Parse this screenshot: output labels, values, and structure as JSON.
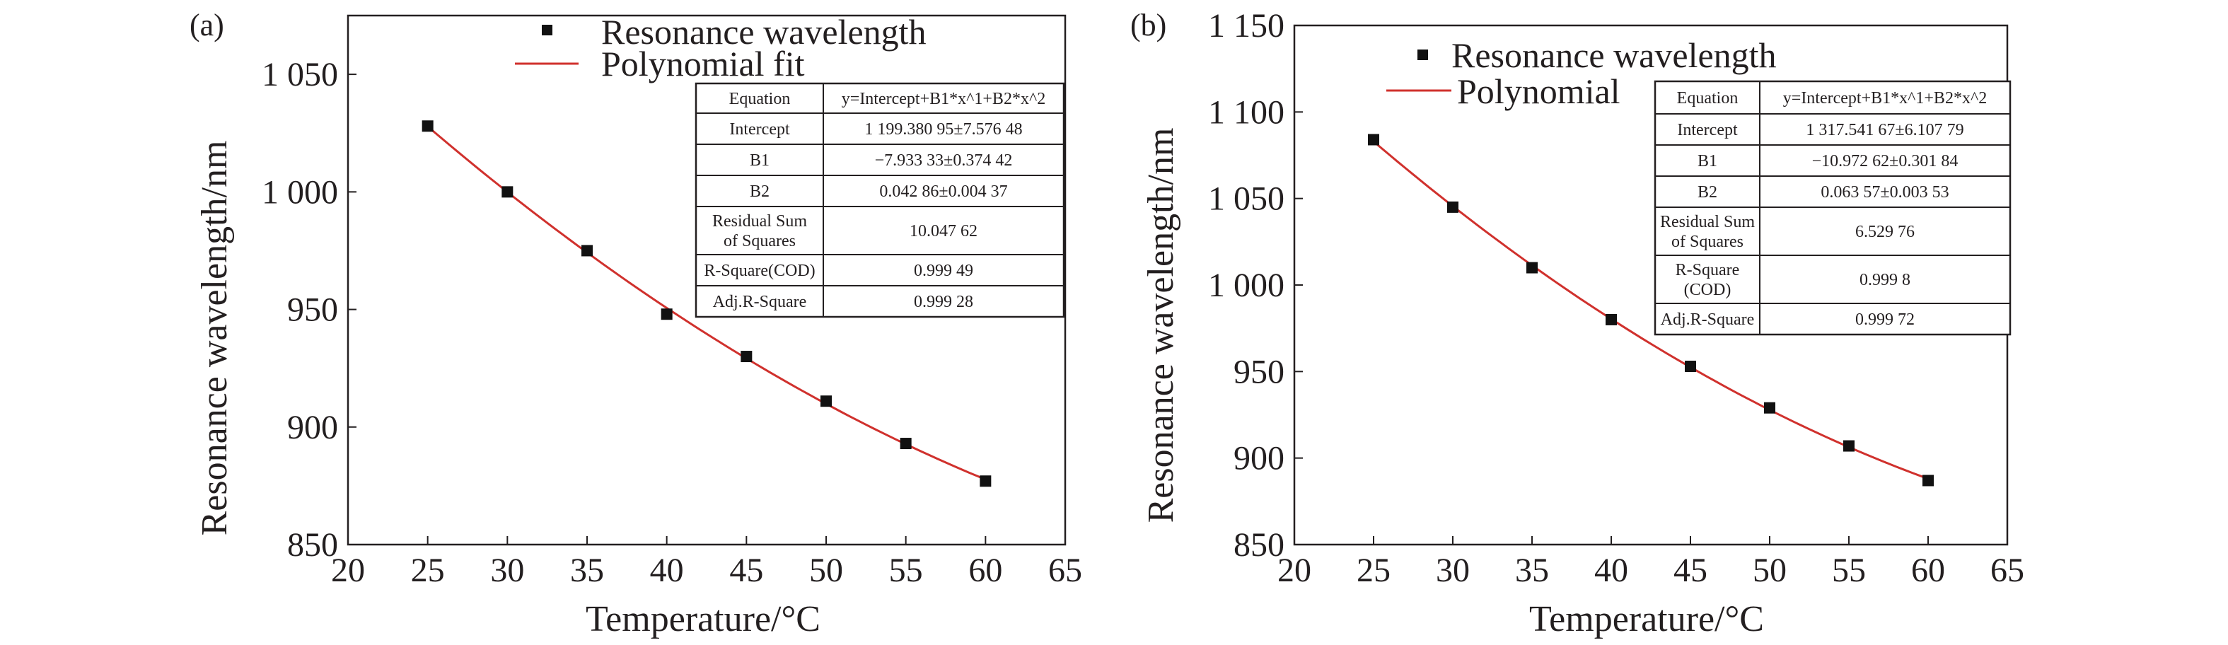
{
  "figure": {
    "panels": [
      {
        "label": "(a)",
        "legend": [
          "Resonance wavelength",
          "Polynomial fit"
        ],
        "table": [
          [
            "Equation",
            "y=Intercept+B1*x^1+B2*x^2"
          ],
          [
            "Intercept",
            "1 199.380 95±7.576 48"
          ],
          [
            "B1",
            "−7.933 33±0.374 42"
          ],
          [
            "B2",
            "0.042 86±0.004 37"
          ],
          [
            "Residual Sum\nof Squares",
            "10.047 62"
          ],
          [
            "R-Square(COD)",
            "0.999 49"
          ],
          [
            "Adj.R-Square",
            "0.999 28"
          ]
        ]
      },
      {
        "label": "(b)",
        "legend": [
          "Resonance wavelength",
          "Polynomial"
        ],
        "table": [
          [
            "Equation",
            "y=Intercept+B1*x^1+B2*x^2"
          ],
          [
            "Intercept",
            "1 317.541 67±6.107 79"
          ],
          [
            "B1",
            "−10.972 62±0.301 84"
          ],
          [
            "B2",
            "0.063 57±0.003 53"
          ],
          [
            "Residual Sum\nof Squares",
            "6.529 76"
          ],
          [
            "R-Square\n(COD)",
            "0.999 8"
          ],
          [
            "Adj.R-Square",
            "0.999 72"
          ]
        ]
      }
    ]
  },
  "colors": {
    "fit_line": "#d0312d",
    "markers": "#111111",
    "axis": "#231f20"
  },
  "chart_data": [
    {
      "type": "scatter",
      "title": "",
      "xlabel": "Temperature/°C",
      "ylabel": "Resonance wavelength/nm",
      "xlim": [
        20,
        65
      ],
      "ylim": [
        850,
        1075
      ],
      "xticks": [
        20,
        25,
        30,
        35,
        40,
        45,
        50,
        55,
        60,
        65
      ],
      "xtick_labels": [
        "20",
        "25",
        "30",
        "35",
        "40",
        "45",
        "50",
        "55",
        "60",
        "65"
      ],
      "yticks": [
        850,
        900,
        950,
        1000,
        1050
      ],
      "ytick_labels": [
        "850",
        "900",
        "950",
        "1 000",
        "1 050"
      ],
      "series": [
        {
          "name": "Resonance wavelength",
          "marker": "square",
          "x": [
            25,
            30,
            35,
            40,
            45,
            50,
            55,
            60
          ],
          "y": [
            1028,
            1000,
            975,
            948,
            930,
            911,
            893,
            877
          ]
        },
        {
          "name": "Polynomial fit",
          "kind": "line",
          "fit": {
            "intercept": 1199.38095,
            "b1": -7.93333,
            "b2": 0.04286
          },
          "x_range": [
            25,
            60
          ]
        }
      ],
      "legend_position": "top-center",
      "grid": false
    },
    {
      "type": "scatter",
      "title": "",
      "xlabel": "Temperature/°C",
      "ylabel": "Resonance wavelength/nm",
      "xlim": [
        20,
        65
      ],
      "ylim": [
        850,
        1150
      ],
      "xticks": [
        20,
        25,
        30,
        35,
        40,
        45,
        50,
        55,
        60,
        65
      ],
      "xtick_labels": [
        "20",
        "25",
        "30",
        "35",
        "40",
        "45",
        "50",
        "55",
        "60",
        "65"
      ],
      "yticks": [
        850,
        900,
        950,
        1000,
        1050,
        1100,
        1150
      ],
      "ytick_labels": [
        "850",
        "900",
        "950",
        "1 000",
        "1 050",
        "1 100",
        "1 150"
      ],
      "series": [
        {
          "name": "Resonance wavelength",
          "marker": "square",
          "x": [
            25,
            30,
            35,
            40,
            45,
            50,
            55,
            60
          ],
          "y": [
            1084,
            1045,
            1010,
            980,
            953,
            929,
            907,
            887
          ]
        },
        {
          "name": "Polynomial",
          "kind": "line",
          "fit": {
            "intercept": 1317.54167,
            "b1": -10.97262,
            "b2": 0.06357
          },
          "x_range": [
            25,
            60
          ]
        }
      ],
      "legend_position": "top-center",
      "grid": false
    }
  ]
}
